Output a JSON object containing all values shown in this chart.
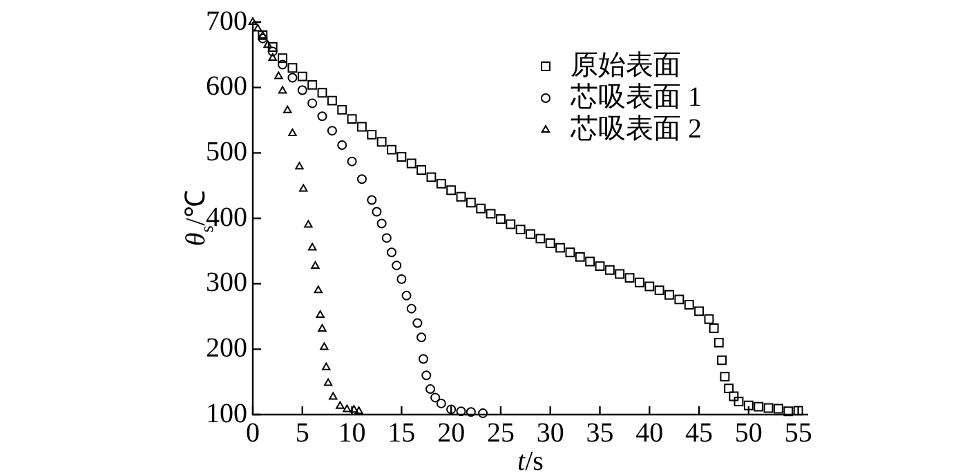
{
  "chart_data": {
    "type": "scatter",
    "xlabel": "t/s",
    "ylabel": "θ$_{s}$/℃",
    "xlim": [
      0,
      56
    ],
    "ylim": [
      100,
      700
    ],
    "xticks": [
      0,
      5,
      10,
      15,
      20,
      25,
      30,
      35,
      40,
      45,
      50,
      55
    ],
    "yticks": [
      100,
      200,
      300,
      400,
      500,
      600,
      700
    ],
    "grid": false,
    "legend": "top right",
    "series": [
      {
        "name": "原始表面",
        "color": "#000000",
        "marker": "square",
        "x": [
          1,
          2,
          3,
          4,
          5,
          6,
          7,
          8,
          9,
          10,
          11,
          12,
          13,
          14,
          15,
          16,
          17,
          18,
          19,
          20,
          21,
          22,
          23,
          24,
          25,
          26,
          27,
          28,
          29,
          30,
          31,
          32,
          33,
          34,
          35,
          36,
          37,
          38,
          39,
          40,
          41,
          42,
          43,
          44,
          45,
          46,
          46.5,
          47,
          47.3,
          47.6,
          48,
          48.5,
          49,
          50,
          51,
          52,
          53,
          54,
          55
        ],
        "values": [
          680,
          662,
          645,
          630,
          617,
          604,
          592,
          580,
          566,
          552,
          540,
          528,
          517,
          505,
          494,
          484,
          474,
          463,
          453,
          443,
          433,
          424,
          415,
          407,
          399,
          391,
          383,
          376,
          369,
          362,
          355,
          348,
          341,
          334,
          327,
          321,
          315,
          309,
          302,
          296,
          290,
          283,
          276,
          268,
          258,
          246,
          232,
          210,
          183,
          158,
          140,
          128,
          120,
          114,
          112,
          110,
          109,
          105,
          106
        ]
      },
      {
        "name": "芯吸表面 1",
        "color": "#000000",
        "marker": "circle",
        "x": [
          1,
          2,
          3,
          4,
          5,
          6,
          7,
          8,
          9,
          10,
          11,
          12,
          12.5,
          13,
          13.5,
          14,
          14.5,
          15,
          15.5,
          16,
          16.6,
          17,
          17.2,
          17.5,
          17.9,
          18.4,
          19,
          20,
          21,
          22,
          23.2
        ],
        "values": [
          675,
          655,
          635,
          615,
          596,
          576,
          556,
          534,
          512,
          487,
          460,
          428,
          410,
          392,
          370,
          348,
          328,
          307,
          282,
          262,
          240,
          218,
          185,
          160,
          139,
          126,
          117,
          108,
          105,
          104,
          102
        ]
      },
      {
        "name": "芯吸表面 2",
        "color": "#000000",
        "marker": "triangle",
        "x": [
          0,
          0.5,
          1,
          1.5,
          2,
          2.6,
          3,
          3.5,
          4,
          4.7,
          5.1,
          5.6,
          6,
          6.3,
          6.6,
          6.8,
          7,
          7.2,
          7.4,
          7.6,
          8.1,
          8.8,
          9.5,
          10.2,
          10.7
        ],
        "values": [
          700,
          690,
          679,
          665,
          645,
          617,
          595,
          565,
          530,
          479,
          445,
          390,
          355,
          327,
          290,
          252,
          231,
          203,
          172,
          148,
          127,
          113,
          108,
          107,
          105
        ]
      }
    ]
  }
}
